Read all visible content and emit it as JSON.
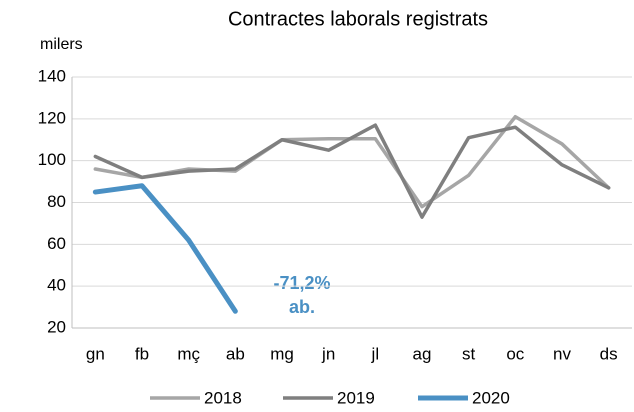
{
  "chart_data": {
    "type": "line",
    "title": "Contractes laborals registrats",
    "y_label": "milers",
    "categories": [
      "gn",
      "fb",
      "mç",
      "ab",
      "mg",
      "jn",
      "jl",
      "ag",
      "st",
      "oc",
      "nv",
      "ds"
    ],
    "series": [
      {
        "name": "2018",
        "color": "#a6a6a6",
        "values": [
          96,
          92,
          96,
          95,
          110,
          110.5,
          110.5,
          78,
          93,
          121,
          108,
          87
        ]
      },
      {
        "name": "2019",
        "color": "#7f7f7f",
        "values": [
          102,
          92,
          95,
          96,
          110,
          105,
          117,
          73,
          111,
          116,
          98,
          87
        ]
      },
      {
        "name": "2020",
        "color": "#4a90c4",
        "values": [
          85,
          88,
          62,
          28,
          null,
          null,
          null,
          null,
          null,
          null,
          null,
          null
        ]
      }
    ],
    "annotations": [
      "-71,2%",
      "ab."
    ],
    "ylim": [
      20,
      140
    ],
    "yticks": [
      20,
      40,
      60,
      80,
      100,
      120,
      140
    ],
    "grid": true,
    "legend": "bottom"
  }
}
